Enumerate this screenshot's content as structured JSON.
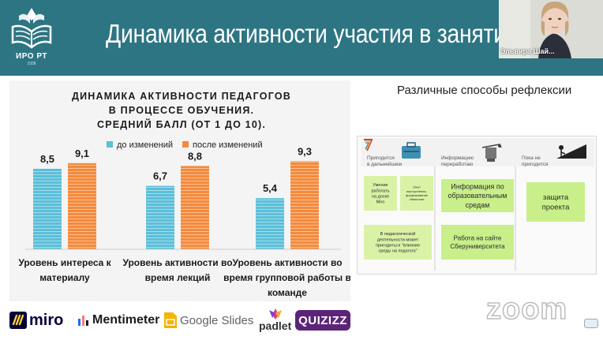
{
  "header": {
    "title": "Динамика активности участия в занятиях",
    "logo_text": "ИРО РТ",
    "logo_year": "1938"
  },
  "webcam": {
    "participant_name": "Эльвира Шай..."
  },
  "chart_data": {
    "type": "bar",
    "title_lines": [
      "ДИНАМИКА АКТИВНОСТИ ПЕДАГОГОВ",
      "В ПРОЦЕССЕ ОБУЧЕНИЯ.",
      "СРЕДНИЙ БАЛЛ (ОТ 1 ДО 10)."
    ],
    "categories": [
      [
        "Уровень интереса к",
        "материалу"
      ],
      [
        "Уровень активности во",
        "время лекций"
      ],
      [
        "Уровень активности во",
        "время групповой работы в",
        "команде"
      ]
    ],
    "series": [
      {
        "name": "до изменений",
        "values": [
          8.5,
          6.7,
          5.4
        ],
        "labels": [
          "8,5",
          "6,7",
          "5,4"
        ],
        "color": "#5bbfd9"
      },
      {
        "name": "после изменений",
        "values": [
          9.1,
          8.8,
          9.3
        ],
        "labels": [
          "9,1",
          "8,8",
          "9,3"
        ],
        "color": "#f48a3c"
      }
    ],
    "ylim": [
      0,
      10
    ],
    "legend": "top-right",
    "grid": false
  },
  "reflection": {
    "title": "Различные способы рефлексии",
    "columns": [
      {
        "header_lines": [
          "Пригодится",
          "в дальнейшем"
        ]
      },
      {
        "header_lines": [
          "Информацию",
          "переработаю"
        ]
      },
      {
        "header_lines": [
          "Пока не",
          "пригодится"
        ]
      }
    ],
    "stickies": [
      {
        "lines": [
          "Умение",
          "работать",
          "на доске",
          "Miro"
        ]
      },
      {
        "lines": [
          "Опыт",
          "выступления,",
          "формирование",
          "сбмыслии"
        ]
      },
      {
        "lines": [
          "Информация по",
          "образовательным",
          "средам"
        ]
      },
      {
        "lines": [
          "защита",
          "проекта"
        ]
      },
      {
        "lines": [
          "В педагогической",
          "деятельности может",
          "пригодиться \"влияние",
          "среды на педагога\""
        ]
      },
      {
        "lines": [
          "Работа на сайте",
          "Сберуниверситета"
        ]
      }
    ]
  },
  "tools": [
    "miro",
    "Mentimeter",
    "Google Slides",
    "padlet",
    "QUIZIZZ"
  ],
  "zoom_watermark": "zoom"
}
